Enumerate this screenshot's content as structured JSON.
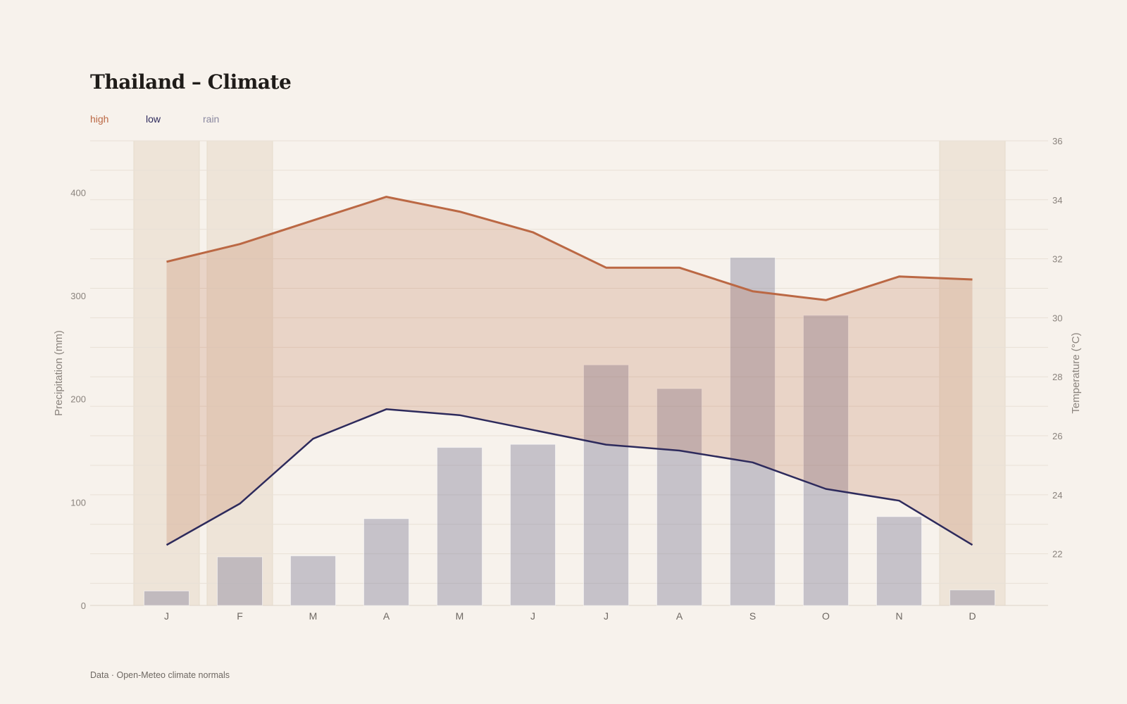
{
  "title": "Thailand – Climate",
  "source": "Data · Open-Meteo climate normals",
  "colors": {
    "high": "#bb6844",
    "low": "#2d2a5c",
    "rain": "#8a88a0",
    "band": "#eee4d8",
    "background": "#f7f2ec"
  },
  "chart_data": {
    "type": "bar",
    "title": "Thailand – Climate",
    "categories": [
      "J",
      "F",
      "M",
      "A",
      "M",
      "J",
      "J",
      "A",
      "S",
      "O",
      "N",
      "D"
    ],
    "highlighted_months": [
      0,
      1,
      11
    ],
    "series": [
      {
        "name": "high",
        "type": "line",
        "axis": "right",
        "values": [
          31.9,
          32.5,
          33.3,
          34.1,
          33.6,
          32.9,
          31.7,
          31.7,
          30.9,
          30.6,
          31.4,
          31.3
        ]
      },
      {
        "name": "low",
        "type": "line",
        "axis": "right",
        "values": [
          22.3,
          23.7,
          25.9,
          26.9,
          26.7,
          26.2,
          25.7,
          25.5,
          25.1,
          24.2,
          23.8,
          22.3
        ]
      },
      {
        "name": "rain",
        "type": "bar",
        "axis": "left",
        "values": [
          14,
          47,
          48,
          84,
          153,
          156,
          233,
          210,
          337,
          281,
          86,
          15
        ]
      }
    ],
    "ylabel": "Precipitation (mm)",
    "y2label": "Temperature (°C)",
    "ylim": [
      0,
      450
    ],
    "y2lim": [
      20.25,
      36
    ],
    "yticks": [
      0,
      100,
      200,
      300,
      400
    ],
    "y2ticks": [
      22,
      24,
      26,
      28,
      30,
      32,
      34,
      36
    ],
    "grid": true,
    "legend": "top-left"
  }
}
